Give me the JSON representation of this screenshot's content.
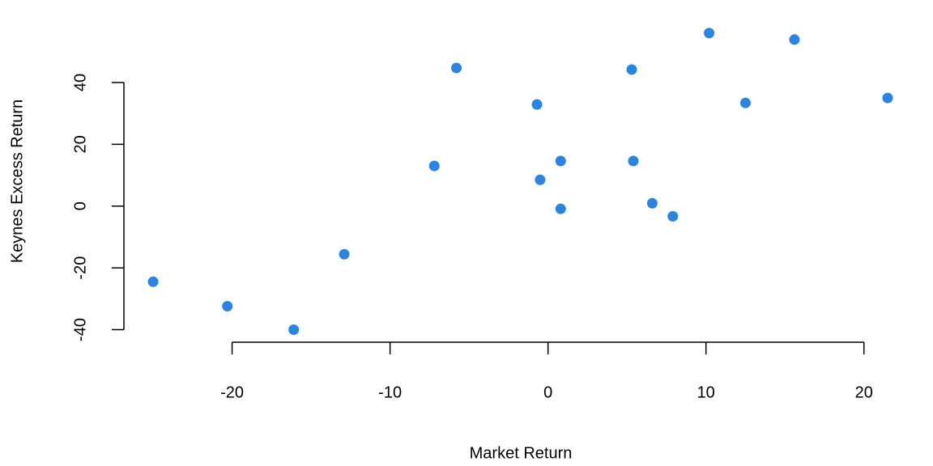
{
  "chart_data": {
    "type": "scatter",
    "x_label": "Market Return",
    "y_label": "Keynes Excess Return",
    "x": [
      -25.0,
      -20.3,
      -16.1,
      -12.9,
      -7.2,
      -5.8,
      -0.7,
      -0.5,
      0.8,
      0.8,
      5.3,
      5.4,
      6.6,
      7.9,
      10.2,
      12.5,
      15.6,
      21.5
    ],
    "values": [
      -24.5,
      -32.4,
      -40.0,
      -15.6,
      13.0,
      44.7,
      32.9,
      8.5,
      14.6,
      -0.9,
      44.2,
      14.6,
      0.9,
      -3.3,
      56.0,
      33.4,
      53.9,
      35.0
    ],
    "color": "#2a84e0",
    "xlim": [
      -26.9,
      23.5
    ],
    "xticks": [
      -20,
      -10,
      0,
      10,
      20
    ],
    "ylim": [
      -43.8,
      59.9
    ],
    "yticks": [
      -40,
      -20,
      0,
      20,
      40
    ]
  }
}
